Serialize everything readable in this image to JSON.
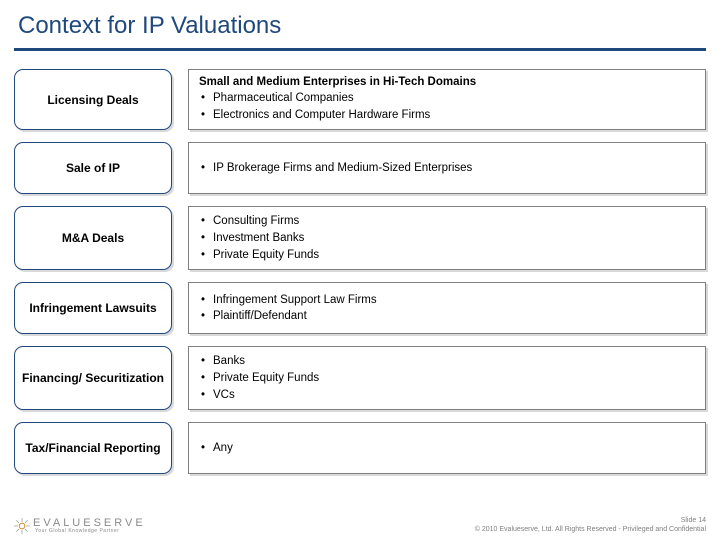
{
  "title": "Context for IP Valuations",
  "colors": {
    "accent": "#1f497d",
    "text": "#000000",
    "border_gray": "#7f7f7f",
    "footer_gray": "#7f7f7f",
    "logo_gray": "#8a8a8a",
    "background": "#ffffff"
  },
  "rows": [
    {
      "label": "Licensing Deals",
      "heading": "Small and Medium Enterprises in Hi-Tech Domains",
      "bullets": [
        "Pharmaceutical Companies",
        "Electronics and Computer Hardware Firms"
      ]
    },
    {
      "label": "Sale of IP",
      "heading": null,
      "bullets": [
        "IP Brokerage Firms and Medium-Sized Enterprises"
      ]
    },
    {
      "label": "M&A Deals",
      "heading": null,
      "bullets": [
        "Consulting Firms",
        "Investment Banks",
        "Private Equity Funds"
      ]
    },
    {
      "label": "Infringement Lawsuits",
      "heading": null,
      "bullets": [
        "Infringement Support Law Firms",
        "Plaintiff/Defendant"
      ]
    },
    {
      "label": "Financing/ Securitization",
      "heading": null,
      "bullets": [
        "Banks",
        "Private Equity Funds",
        "VCs"
      ]
    },
    {
      "label": "Tax/Financial Reporting",
      "heading": null,
      "bullets": [
        "Any"
      ]
    }
  ],
  "footer": {
    "logo_text": "EVALUESERVE",
    "logo_sub": "Your Global Knowledge Partner",
    "slide_number": "Slide 14",
    "copyright": "© 2010 Evalueserve, Ltd. All Rights Reserved - Privileged and Confidential"
  }
}
